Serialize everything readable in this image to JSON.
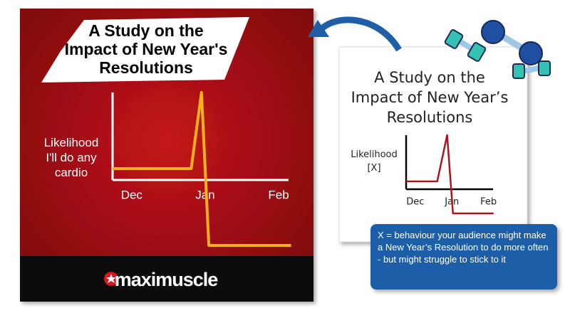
{
  "chart_data": [
    {
      "type": "line",
      "title": "A Study on the\nImpact of New Year's\nResolutions",
      "y_label": "Likelihood\nI'll do any\ncardio",
      "xlim": [
        -0.26,
        2.3
      ],
      "ylim": [
        -10,
        12.3
      ],
      "xticks": [
        {
          "value": 0,
          "label": "Dec"
        },
        {
          "value": 1,
          "label": "Jan"
        },
        {
          "value": 2,
          "label": "Feb"
        }
      ],
      "series": [
        {
          "color": "#f5b01a",
          "x": [
            -0.26,
            0.81,
            0.95,
            1.05,
            2.17
          ],
          "values": [
            1.6,
            1.6,
            12.3,
            -9.2,
            -9.2
          ]
        }
      ]
    },
    {
      "type": "line",
      "title": "A Study on the\nImpact of New Year’s\nResolutions",
      "y_label": "Likelihood\n[X]",
      "xlim": [
        -0.25,
        2.3
      ],
      "ylim": [
        -7,
        15.2
      ],
      "xticks": [
        {
          "value": 0,
          "label": "Dec"
        },
        {
          "value": 1,
          "label": "Jan"
        },
        {
          "value": 2,
          "label": "Feb"
        }
      ],
      "series": [
        {
          "color": "#b0141a",
          "x": [
            -0.25,
            0.6,
            0.87,
            1.03,
            2.14
          ],
          "values": [
            2.2,
            2.2,
            15.2,
            -6.8,
            -6.8
          ]
        }
      ]
    }
  ],
  "logo": "maximuscle",
  "callout": "X = behaviour your audience might make a New Year’s Resolution to do more often - but might struggle to stick to it"
}
